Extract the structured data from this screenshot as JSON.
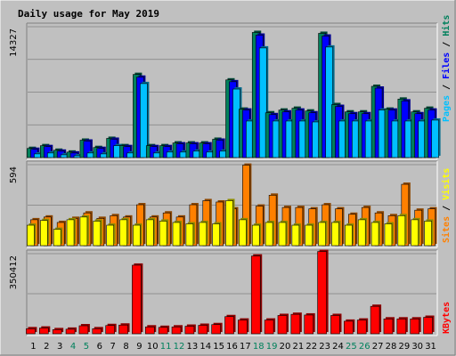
{
  "colors": {
    "background": "#c0c0c0",
    "panel": "#c0c0c0",
    "title": "#0000ff",
    "hits": "#00805c",
    "files": "#0000ff",
    "pages": "#00c0ff",
    "sites": "#ff8000",
    "visits": "#ffff00",
    "kbytes": "#ff0000",
    "weekend": "#00805c",
    "weekday": "#000000"
  },
  "chart_data": [
    {
      "type": "bar",
      "title": "Daily usage for May 2019",
      "categories": [
        "1",
        "2",
        "3",
        "4",
        "5",
        "6",
        "7",
        "8",
        "9",
        "10",
        "11",
        "12",
        "13",
        "14",
        "15",
        "16",
        "17",
        "18",
        "19",
        "20",
        "21",
        "22",
        "23",
        "24",
        "25",
        "26",
        "27",
        "28",
        "29",
        "30",
        "31"
      ],
      "weekend_days": [
        "4",
        "5",
        "11",
        "12",
        "18",
        "19",
        "25",
        "26"
      ],
      "ymax_label": "14327",
      "ylim": [
        0,
        14327
      ],
      "legend": [
        "Pages",
        "Files",
        "Hits"
      ],
      "series": [
        {
          "name": "Hits",
          "values": [
            1000,
            1300,
            800,
            600,
            1900,
            1100,
            2100,
            1300,
            9100,
            1300,
            1300,
            1600,
            1600,
            1600,
            2000,
            8500,
            5300,
            13700,
            4900,
            5200,
            5400,
            5100,
            13600,
            5800,
            5000,
            5000,
            7800,
            5300,
            6400,
            5000,
            5400
          ]
        },
        {
          "name": "Files",
          "values": [
            900,
            1200,
            700,
            500,
            1800,
            1000,
            2000,
            1200,
            8800,
            1200,
            1200,
            1500,
            1500,
            1500,
            1900,
            8300,
            5200,
            13400,
            4700,
            5000,
            5200,
            4900,
            13300,
            5600,
            4800,
            4800,
            7600,
            5200,
            6200,
            4800,
            5200
          ]
        },
        {
          "name": "Pages",
          "values": [
            400,
            500,
            300,
            200,
            500,
            400,
            1300,
            500,
            8100,
            500,
            600,
            600,
            700,
            600,
            700,
            7500,
            4000,
            12000,
            4000,
            4000,
            4000,
            3900,
            12100,
            4000,
            4000,
            4000,
            5200,
            4000,
            4000,
            4000,
            4100
          ]
        }
      ]
    },
    {
      "type": "bar",
      "categories": [
        "1",
        "2",
        "3",
        "4",
        "5",
        "6",
        "7",
        "8",
        "9",
        "10",
        "11",
        "12",
        "13",
        "14",
        "15",
        "16",
        "17",
        "18",
        "19",
        "20",
        "21",
        "22",
        "23",
        "24",
        "25",
        "26",
        "27",
        "28",
        "29",
        "30",
        "31"
      ],
      "ymax_label": "594",
      "ylim": [
        0,
        594
      ],
      "legend": [
        "Sites",
        "Visits"
      ],
      "series": [
        {
          "name": "Visits",
          "values": [
            150,
            185,
            120,
            190,
            210,
            180,
            150,
            190,
            150,
            190,
            180,
            170,
            160,
            170,
            160,
            330,
            190,
            150,
            170,
            170,
            150,
            150,
            170,
            170,
            150,
            190,
            170,
            160,
            220,
            190,
            180
          ]
        },
        {
          "name": "Sites",
          "values": [
            190,
            210,
            170,
            200,
            240,
            200,
            220,
            210,
            300,
            210,
            240,
            210,
            300,
            330,
            320,
            270,
            590,
            290,
            370,
            280,
            280,
            270,
            300,
            270,
            230,
            280,
            240,
            220,
            450,
            260,
            270
          ]
        }
      ]
    },
    {
      "type": "bar",
      "categories": [
        "1",
        "2",
        "3",
        "4",
        "5",
        "6",
        "7",
        "8",
        "9",
        "10",
        "11",
        "12",
        "13",
        "14",
        "15",
        "16",
        "17",
        "18",
        "19",
        "20",
        "21",
        "22",
        "23",
        "24",
        "25",
        "26",
        "27",
        "28",
        "29",
        "30",
        "31"
      ],
      "ymax_label": "350412",
      "ylim": [
        0,
        350412
      ],
      "legend": [
        "KBytes"
      ],
      "series": [
        {
          "name": "KBytes",
          "values": [
            22000,
            25000,
            18000,
            20000,
            35000,
            22000,
            36000,
            38000,
            300000,
            30000,
            28000,
            30000,
            33000,
            37000,
            40000,
            75000,
            60000,
            340000,
            60000,
            80000,
            85000,
            82000,
            360000,
            80000,
            55000,
            60000,
            120000,
            65000,
            65000,
            65000,
            72000
          ]
        }
      ]
    }
  ]
}
